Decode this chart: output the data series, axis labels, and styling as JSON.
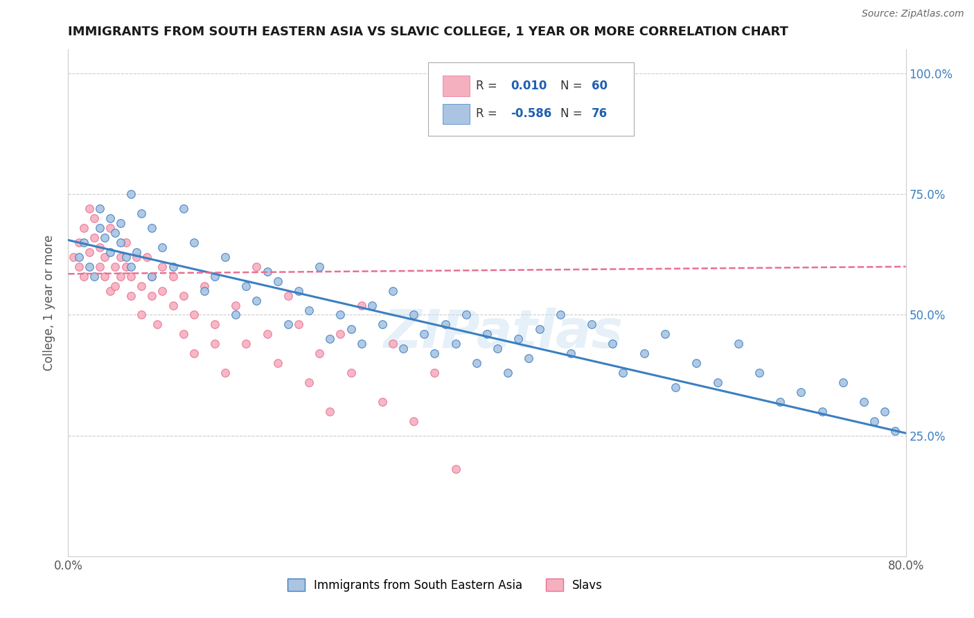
{
  "title": "IMMIGRANTS FROM SOUTH EASTERN ASIA VS SLAVIC COLLEGE, 1 YEAR OR MORE CORRELATION CHART",
  "source_text": "Source: ZipAtlas.com",
  "ylabel": "College, 1 year or more",
  "x_label_blue": "Immigrants from South Eastern Asia",
  "x_label_pink": "Slavs",
  "xlim": [
    0.0,
    0.8
  ],
  "ylim": [
    0.0,
    1.05
  ],
  "R_blue": -0.586,
  "N_blue": 76,
  "R_pink": 0.01,
  "N_pink": 60,
  "blue_color": "#aac4e2",
  "pink_color": "#f5b0c0",
  "blue_line_color": "#3a7fc1",
  "pink_line_color": "#e87090",
  "legend_R_color": "#2060b0",
  "watermark": "ZIPatlas",
  "blue_scatter_x": [
    0.01,
    0.015,
    0.02,
    0.025,
    0.03,
    0.03,
    0.035,
    0.04,
    0.04,
    0.045,
    0.05,
    0.05,
    0.055,
    0.06,
    0.06,
    0.065,
    0.07,
    0.08,
    0.08,
    0.09,
    0.1,
    0.11,
    0.12,
    0.13,
    0.14,
    0.15,
    0.16,
    0.17,
    0.18,
    0.19,
    0.2,
    0.21,
    0.22,
    0.23,
    0.24,
    0.25,
    0.26,
    0.27,
    0.28,
    0.29,
    0.3,
    0.31,
    0.32,
    0.33,
    0.34,
    0.35,
    0.36,
    0.37,
    0.38,
    0.39,
    0.4,
    0.41,
    0.42,
    0.43,
    0.44,
    0.45,
    0.47,
    0.48,
    0.5,
    0.52,
    0.53,
    0.55,
    0.57,
    0.58,
    0.6,
    0.62,
    0.64,
    0.66,
    0.68,
    0.7,
    0.72,
    0.74,
    0.76,
    0.77,
    0.78,
    0.79
  ],
  "blue_scatter_y": [
    0.62,
    0.65,
    0.6,
    0.58,
    0.72,
    0.68,
    0.66,
    0.63,
    0.7,
    0.67,
    0.65,
    0.69,
    0.62,
    0.75,
    0.6,
    0.63,
    0.71,
    0.68,
    0.58,
    0.64,
    0.6,
    0.72,
    0.65,
    0.55,
    0.58,
    0.62,
    0.5,
    0.56,
    0.53,
    0.59,
    0.57,
    0.48,
    0.55,
    0.51,
    0.6,
    0.45,
    0.5,
    0.47,
    0.44,
    0.52,
    0.48,
    0.55,
    0.43,
    0.5,
    0.46,
    0.42,
    0.48,
    0.44,
    0.5,
    0.4,
    0.46,
    0.43,
    0.38,
    0.45,
    0.41,
    0.47,
    0.5,
    0.42,
    0.48,
    0.44,
    0.38,
    0.42,
    0.46,
    0.35,
    0.4,
    0.36,
    0.44,
    0.38,
    0.32,
    0.34,
    0.3,
    0.36,
    0.32,
    0.28,
    0.3,
    0.26
  ],
  "pink_scatter_x": [
    0.005,
    0.01,
    0.01,
    0.015,
    0.015,
    0.02,
    0.02,
    0.025,
    0.025,
    0.03,
    0.03,
    0.035,
    0.035,
    0.04,
    0.04,
    0.045,
    0.045,
    0.05,
    0.05,
    0.055,
    0.055,
    0.06,
    0.06,
    0.065,
    0.07,
    0.07,
    0.075,
    0.08,
    0.08,
    0.085,
    0.09,
    0.09,
    0.1,
    0.1,
    0.11,
    0.11,
    0.12,
    0.12,
    0.13,
    0.14,
    0.14,
    0.15,
    0.16,
    0.17,
    0.18,
    0.19,
    0.2,
    0.21,
    0.22,
    0.23,
    0.24,
    0.25,
    0.26,
    0.27,
    0.28,
    0.3,
    0.31,
    0.33,
    0.35,
    0.37
  ],
  "pink_scatter_y": [
    0.62,
    0.6,
    0.65,
    0.58,
    0.68,
    0.63,
    0.72,
    0.66,
    0.7,
    0.6,
    0.64,
    0.58,
    0.62,
    0.55,
    0.68,
    0.6,
    0.56,
    0.62,
    0.58,
    0.65,
    0.6,
    0.54,
    0.58,
    0.62,
    0.56,
    0.5,
    0.62,
    0.54,
    0.58,
    0.48,
    0.55,
    0.6,
    0.52,
    0.58,
    0.46,
    0.54,
    0.42,
    0.5,
    0.56,
    0.48,
    0.44,
    0.38,
    0.52,
    0.44,
    0.6,
    0.46,
    0.4,
    0.54,
    0.48,
    0.36,
    0.42,
    0.3,
    0.46,
    0.38,
    0.52,
    0.32,
    0.44,
    0.28,
    0.38,
    0.18
  ],
  "blue_line_x": [
    0.0,
    0.8
  ],
  "blue_line_y": [
    0.655,
    0.255
  ],
  "pink_line_x": [
    0.0,
    0.8
  ],
  "pink_line_y": [
    0.585,
    0.6
  ],
  "background_color": "#ffffff",
  "grid_color": "#cccccc"
}
